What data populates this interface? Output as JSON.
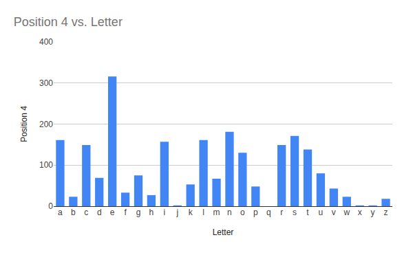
{
  "chart_data": {
    "type": "bar",
    "title": "Position 4 vs. Letter",
    "x_label": "Letter",
    "y_label": "Position 4",
    "categories": [
      "a",
      "b",
      "c",
      "d",
      "e",
      "f",
      "g",
      "h",
      "i",
      "j",
      "k",
      "l",
      "m",
      "n",
      "o",
      "p",
      "q",
      "r",
      "s",
      "t",
      "u",
      "v",
      "w",
      "x",
      "y",
      "z"
    ],
    "values": [
      161,
      23,
      149,
      69,
      316,
      33,
      75,
      27,
      157,
      2,
      53,
      161,
      67,
      181,
      130,
      48,
      0,
      149,
      171,
      138,
      80,
      43,
      23,
      2,
      2,
      18
    ],
    "color": "#4285f4",
    "ylim": [
      0,
      400
    ],
    "yticks": [
      0,
      100,
      200,
      300,
      400
    ],
    "grid": true
  }
}
